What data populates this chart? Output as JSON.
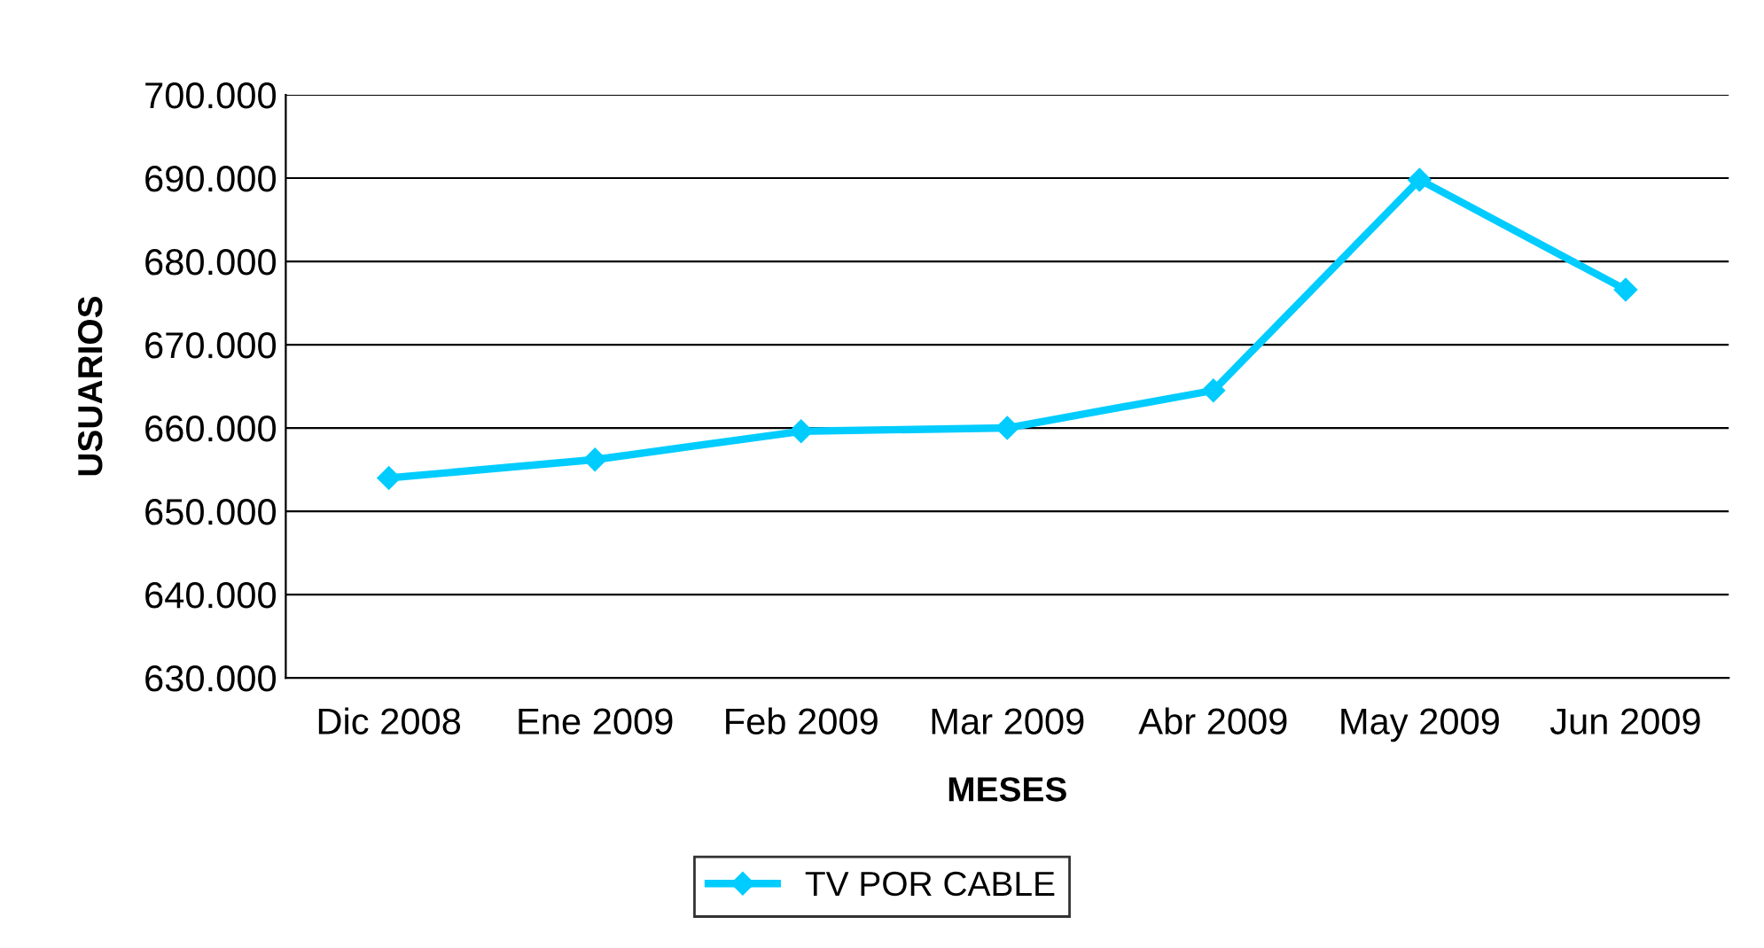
{
  "chart_data": {
    "type": "line",
    "xlabel": "MESES",
    "ylabel": "USUARIOS",
    "categories": [
      "Dic 2008",
      "Ene 2009",
      "Feb 2009",
      "Mar 2009",
      "Abr 2009",
      "May 2009",
      "Jun 2009"
    ],
    "series": [
      {
        "name": "TV POR CABLE",
        "color": "#00ccff",
        "values": [
          654000,
          656200,
          659600,
          660000,
          664500,
          689800,
          676600
        ]
      }
    ],
    "ylim": [
      630000,
      700000
    ],
    "yticks": [
      {
        "value": 630000,
        "label": "630.000"
      },
      {
        "value": 640000,
        "label": "640.000"
      },
      {
        "value": 650000,
        "label": "650.000"
      },
      {
        "value": 660000,
        "label": "660.000"
      },
      {
        "value": 670000,
        "label": "670.000"
      },
      {
        "value": 680000,
        "label": "680.000"
      },
      {
        "value": 690000,
        "label": "690.000"
      },
      {
        "value": 700000,
        "label": "700.000"
      }
    ],
    "grid": "y",
    "legend": "bottom",
    "marker": "diamond",
    "line_style": "solid"
  }
}
